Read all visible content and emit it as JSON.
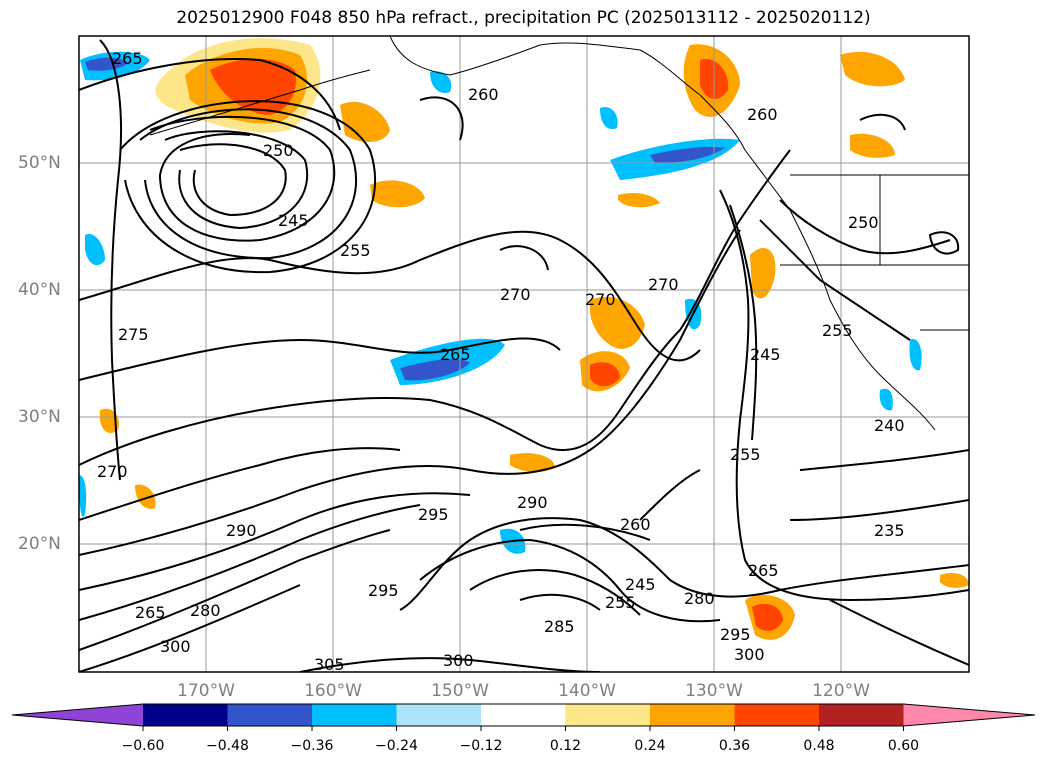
{
  "title": "2025012900 F048 850 hPa refract., precipitation PC (2025013112 - 2025020112)",
  "latitude_labels": [
    "50°N",
    "40°N",
    "30°N",
    "20°N"
  ],
  "longitude_labels": [
    "170°W",
    "160°W",
    "150°W",
    "140°W",
    "130°W",
    "120°W"
  ],
  "contour_labels": [
    "265",
    "260",
    "250",
    "245",
    "255",
    "275",
    "270",
    "270",
    "265",
    "270",
    "245",
    "255",
    "260",
    "250",
    "255",
    "235",
    "240",
    "270",
    "290",
    "295",
    "290",
    "260",
    "245",
    "255",
    "280",
    "265",
    "285",
    "300",
    "305",
    "300",
    "295",
    "265",
    "280",
    "300",
    "295"
  ],
  "colorbar": {
    "ticks": [
      "−0.60",
      "−0.48",
      "−0.36",
      "−0.24",
      "−0.12",
      "0.12",
      "0.24",
      "0.36",
      "0.48",
      "0.60"
    ],
    "colors": [
      "#8e44d6",
      "#00008b",
      "#3355cc",
      "#00bfff",
      "#aee4fb",
      "#ffffff",
      "#fde68a",
      "#ffa500",
      "#ff4500",
      "#b22222",
      "#ff88aa"
    ]
  },
  "fill_colors": {
    "neg_light": "#aee4fb",
    "neg_mid": "#00bfff",
    "neg_dark": "#3355cc",
    "neg_deep": "#00008b",
    "pos_light": "#fde68a",
    "pos_mid": "#ffa500",
    "pos_dark": "#ff4500"
  }
}
